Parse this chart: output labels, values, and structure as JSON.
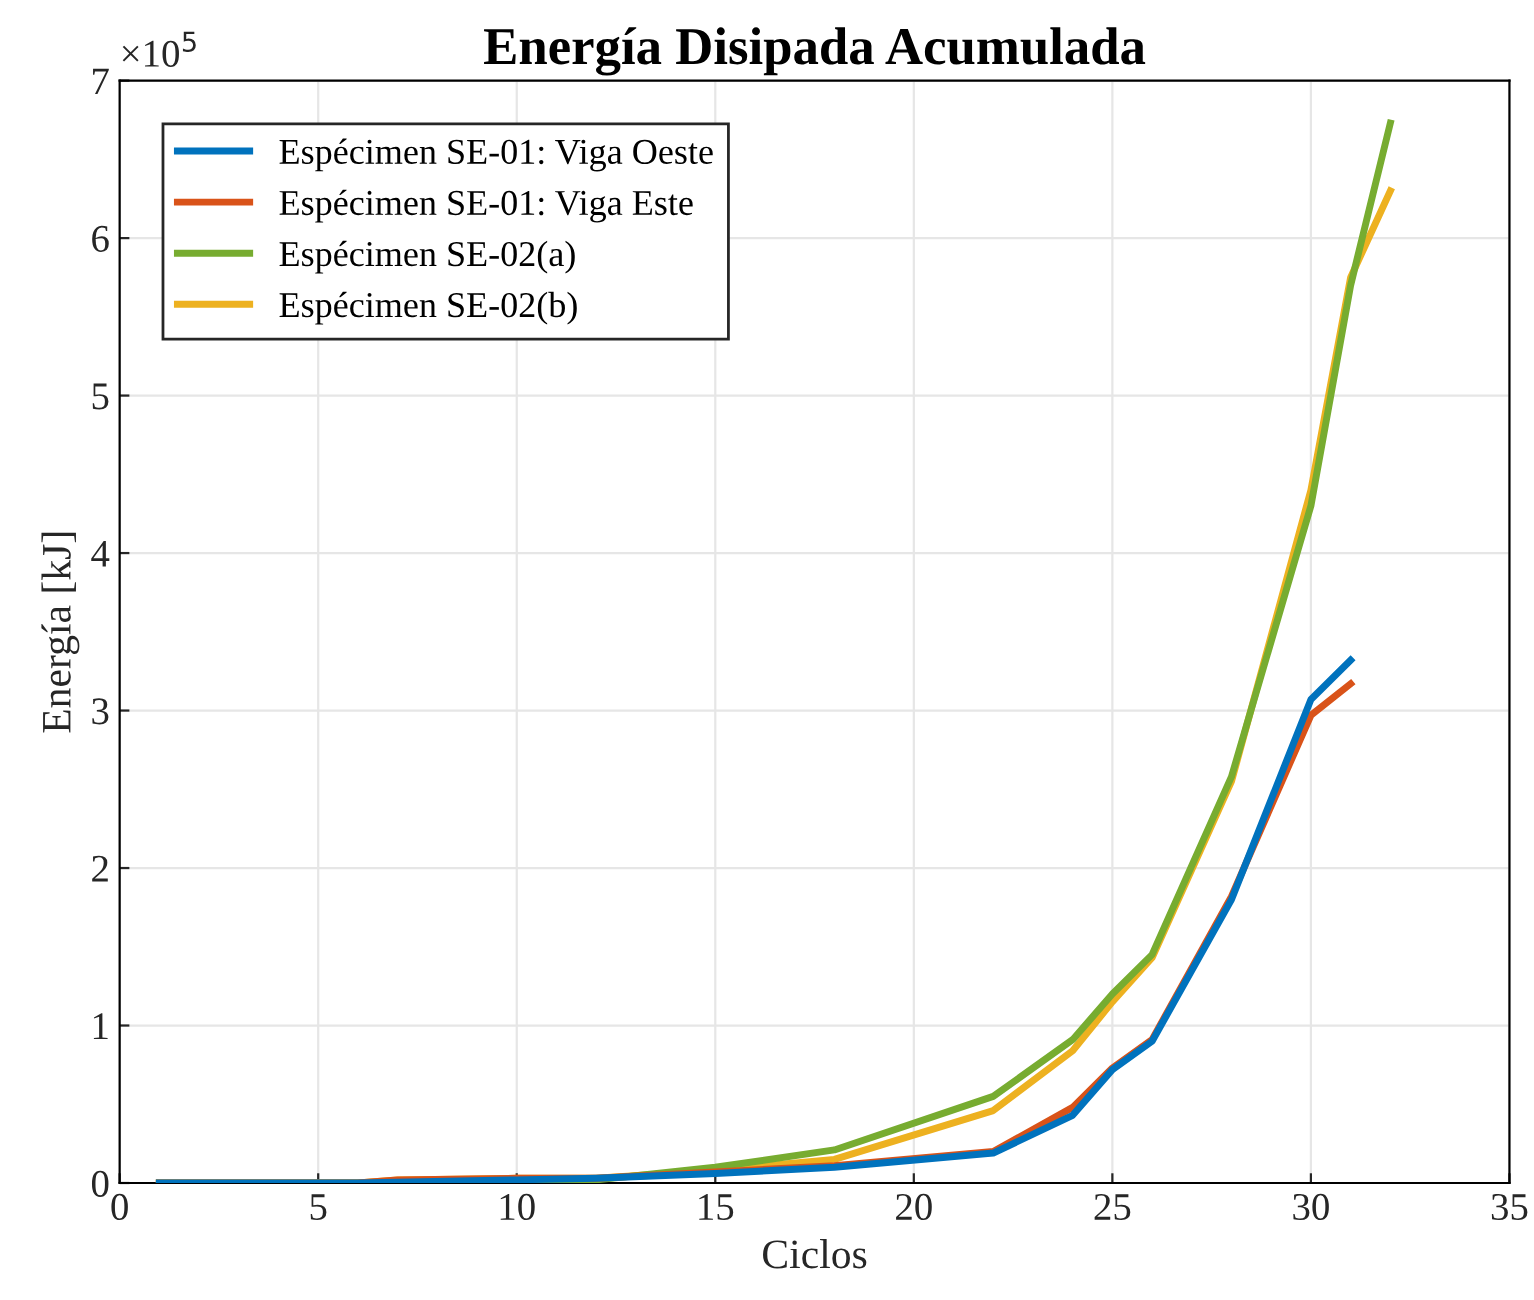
{
  "chart_data": {
    "type": "line",
    "title": "Energía Disipada Acumulada",
    "xlabel": "Ciclos",
    "ylabel": "Energía [kJ]",
    "annotations": [
      "×10$^{5}$"
    ],
    "xlim": [
      0,
      35
    ],
    "xticks": [
      0,
      5,
      10,
      15,
      20,
      25,
      30,
      35
    ],
    "ylim": [
      0,
      7
    ],
    "yticks": [
      0,
      1,
      2,
      3,
      4,
      5,
      6,
      7
    ],
    "grid": true,
    "legend": "top left",
    "marker": "none",
    "line_style": "solid",
    "series": [
      {
        "name": "Espécimen SE-01: Viga Oeste",
        "color": "#0072bd",
        "x": [
          1,
          6,
          10,
          12,
          15,
          18,
          22,
          24,
          25,
          26,
          28,
          30,
          31
        ],
        "values": [
          0,
          0,
          0.02,
          0.03,
          0.06,
          0.1,
          0.19,
          0.43,
          0.72,
          0.9,
          1.8,
          3.07,
          3.32
        ]
      },
      {
        "name": "Espécimen SE-01: Viga Este",
        "color": "#d95319",
        "x": [
          1,
          6,
          7,
          10,
          12,
          15,
          18,
          22,
          24,
          25,
          26,
          28,
          30,
          31
        ],
        "values": [
          0,
          0,
          0.02,
          0.03,
          0.03,
          0.07,
          0.11,
          0.2,
          0.48,
          0.73,
          0.91,
          1.82,
          2.97,
          3.17
        ]
      },
      {
        "name": "Espécimen SE-02(a)",
        "color": "#77ac30",
        "x": [
          1,
          6,
          12,
          15,
          18,
          22,
          24,
          25,
          26,
          28,
          30,
          31,
          32
        ],
        "values": [
          0,
          0,
          0.02,
          0.1,
          0.21,
          0.55,
          0.91,
          1.2,
          1.45,
          2.58,
          4.3,
          5.7,
          6.73
        ]
      },
      {
        "name": "Espécimen SE-02(b)",
        "color": "#edb120",
        "x": [
          1,
          6,
          7,
          10,
          12,
          15,
          18,
          22,
          24,
          25,
          26,
          28,
          30,
          31,
          32
        ],
        "values": [
          0,
          0,
          0.02,
          0.03,
          0.03,
          0.08,
          0.15,
          0.46,
          0.84,
          1.15,
          1.43,
          2.55,
          4.4,
          5.75,
          6.3
        ]
      }
    ]
  }
}
